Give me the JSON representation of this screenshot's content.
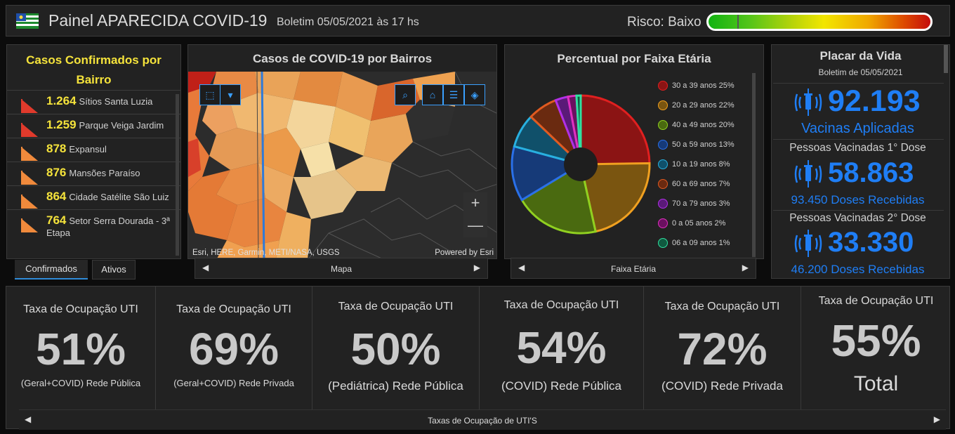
{
  "header": {
    "title": "Painel APARECIDA COVID-19",
    "bulletin": "Boletim 05/05/2021 às 17 hs",
    "risk_label": "Risco: Baixo",
    "risk_level": 0.13
  },
  "cases": {
    "title": "Casos Confirmados por Bairro",
    "rows": [
      {
        "value": "1.264",
        "name": "Sítios Santa Luzia",
        "color": "#e03a2c"
      },
      {
        "value": "1.259",
        "name": "Parque Veiga Jardim",
        "color": "#e03a2c"
      },
      {
        "value": "878",
        "name": "Expansul",
        "color": "#f08a3c"
      },
      {
        "value": "876",
        "name": "Mansões Paraíso",
        "color": "#f08a3c"
      },
      {
        "value": "864",
        "name": "Cidade Satélite São Luiz",
        "color": "#f08a3c"
      },
      {
        "value": "764",
        "name": "Setor Serra Dourada - 3ª Etapa",
        "color": "#f08a3c"
      }
    ],
    "tabs": [
      "Confirmados",
      "Ativos"
    ]
  },
  "map": {
    "title": "Casos de COVID-19 por Bairros",
    "attribution": "Esri, HERE, Garmin, METI/NASA, USGS",
    "powered": "Powered by Esri",
    "pager_label": "Mapa",
    "zoom_in": "+",
    "zoom_out": "—"
  },
  "age": {
    "title": "Percentual por Faixa Etária",
    "pager_label": "Faixa Etária",
    "legend": [
      {
        "label": "30 a 39 anos  25%",
        "pct": 25,
        "color": "#8b1414",
        "edge": "#e02020"
      },
      {
        "label": "20 a 29 anos  22%",
        "pct": 22,
        "color": "#7a5510",
        "edge": "#f0a020"
      },
      {
        "label": "40 a 49 anos  20%",
        "pct": 20,
        "color": "#4a6a10",
        "edge": "#90d020"
      },
      {
        "label": "50 a 59 anos  13%",
        "pct": 13,
        "color": "#163a78",
        "edge": "#2a70e8"
      },
      {
        "label": "10 a 19 anos  8%",
        "pct": 8,
        "color": "#10506a",
        "edge": "#28b0e0"
      },
      {
        "label": "60 a 69 anos  7%",
        "pct": 7,
        "color": "#6a2a10",
        "edge": "#e05a20"
      },
      {
        "label": "70 a 79 anos  3%",
        "pct": 3,
        "color": "#5a1a78",
        "edge": "#b030e8"
      },
      {
        "label": "0 a 05 anos  2%",
        "pct": 2,
        "color": "#6a1060",
        "edge": "#e030c0"
      },
      {
        "label": "06 a 09 anos  1%",
        "pct": 1,
        "color": "#105a40",
        "edge": "#30e0a0"
      }
    ]
  },
  "vida": {
    "title": "Placar da Vida",
    "subtitle": "Boletim de 05/05/2021",
    "vacinas": "92.193",
    "vacinas_label": "Vacinas Aplicadas",
    "dose1_label": "Pessoas Vacinadas 1° Dose",
    "dose1": "58.863",
    "dose1_received": "93.450 Doses Recebidas",
    "dose2_label": "Pessoas Vacinadas 2° Dose",
    "dose2": "33.330",
    "dose2_received": "46.200 Doses Recebidas"
  },
  "uti": {
    "pager_label": "Taxas de Ocupação de UTI'S",
    "cards": [
      {
        "title": "Taxa de Ocupação UTI",
        "value": "51%",
        "sub": "(Geral+COVID) Rede Pública"
      },
      {
        "title": "Taxa de Ocupação UTI",
        "value": "69%",
        "sub": "(Geral+COVID) Rede Privada"
      },
      {
        "title": "Taxa de Ocupação UTI",
        "value": "50%",
        "sub": "(Pediátrica) Rede Pública"
      },
      {
        "title": "Taxa de Ocupação UTI",
        "value": "54%",
        "sub": "(COVID) Rede Pública"
      },
      {
        "title": "Taxa de Ocupação UTI",
        "value": "72%",
        "sub": "(COVID) Rede Privada"
      },
      {
        "title": "Taxa de Ocupação UTI",
        "value": "55%",
        "sub": "Total"
      }
    ]
  },
  "colors": {
    "accent_blue": "#1f7ef5",
    "highlight_yellow": "#f5e33b"
  }
}
